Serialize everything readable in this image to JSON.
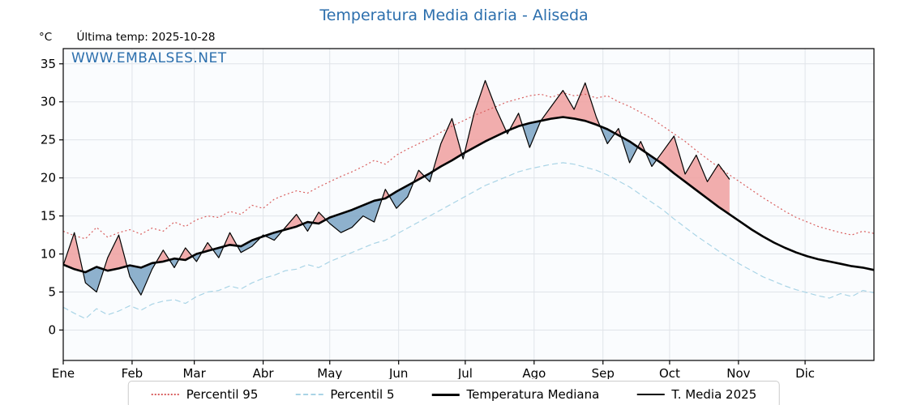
{
  "header": {
    "title": "Temperatura Media diaria - Aliseda",
    "unit_label": "°C",
    "last_temp_label": "Última temp: 2025-10-28",
    "watermark": "WWW.EMBALSES.NET"
  },
  "colors": {
    "title_blue": "#2c6fad",
    "percentil95_red": "#d95f5f",
    "percentil5_blue": "#a9d4e6",
    "median_black": "#000000",
    "fill_above": "#ef9f9f",
    "fill_below": "#7aa3c4",
    "grid": "#e0e4e9",
    "plot_bg": "#fafcfe"
  },
  "chart_data": {
    "type": "line",
    "title": "Temperatura Media diaria - Aliseda",
    "xlabel": "",
    "ylabel": "°C",
    "ylim": [
      -4,
      37
    ],
    "yticks": [
      0,
      5,
      10,
      15,
      20,
      25,
      30,
      35
    ],
    "x_unit": "day_of_year",
    "x_max": 365,
    "grid": true,
    "months": [
      {
        "label": "Ene",
        "day": 0
      },
      {
        "label": "Feb",
        "day": 31
      },
      {
        "label": "Mar",
        "day": 59
      },
      {
        "label": "Abr",
        "day": 90
      },
      {
        "label": "May",
        "day": 120
      },
      {
        "label": "Jun",
        "day": 151
      },
      {
        "label": "Jul",
        "day": 181
      },
      {
        "label": "Ago",
        "day": 212
      },
      {
        "label": "Sep",
        "day": 243
      },
      {
        "label": "Oct",
        "day": 273
      },
      {
        "label": "Nov",
        "day": 304
      },
      {
        "label": "Dic",
        "day": 334
      }
    ],
    "series": [
      {
        "name": "Percentil 95",
        "style": "dotted",
        "color": "#d95f5f",
        "width": 1.2,
        "day_start": 0,
        "day_step": 5,
        "values": [
          13.0,
          12.4,
          12.0,
          13.5,
          12.2,
          12.8,
          13.2,
          12.6,
          13.4,
          13.0,
          14.2,
          13.6,
          14.5,
          15.0,
          14.8,
          15.6,
          15.2,
          16.4,
          16.0,
          17.2,
          17.8,
          18.3,
          18.0,
          18.8,
          19.5,
          20.2,
          20.8,
          21.5,
          22.3,
          21.8,
          23.0,
          23.8,
          24.5,
          25.2,
          26.0,
          26.8,
          27.5,
          28.2,
          28.8,
          29.4,
          30.0,
          30.4,
          30.8,
          31.0,
          30.6,
          31.2,
          30.8,
          31.0,
          30.5,
          30.8,
          30.0,
          29.4,
          28.6,
          27.8,
          26.8,
          25.8,
          24.8,
          23.6,
          22.5,
          21.4,
          20.4,
          19.4,
          18.4,
          17.4,
          16.5,
          15.6,
          14.8,
          14.2,
          13.6,
          13.2,
          12.8,
          12.5,
          13.0,
          12.7
        ]
      },
      {
        "name": "Percentil 5",
        "style": "dashed",
        "color": "#a9d4e6",
        "width": 1.2,
        "day_start": 0,
        "day_step": 5,
        "values": [
          3.0,
          2.2,
          1.5,
          2.8,
          2.0,
          2.5,
          3.2,
          2.6,
          3.4,
          3.8,
          4.0,
          3.5,
          4.4,
          5.0,
          5.2,
          5.8,
          5.4,
          6.2,
          6.8,
          7.2,
          7.8,
          8.0,
          8.6,
          8.2,
          9.0,
          9.6,
          10.2,
          10.8,
          11.4,
          11.8,
          12.6,
          13.4,
          14.2,
          15.0,
          15.8,
          16.6,
          17.4,
          18.2,
          19.0,
          19.6,
          20.2,
          20.8,
          21.2,
          21.5,
          21.8,
          22.0,
          21.8,
          21.4,
          21.0,
          20.4,
          19.6,
          18.8,
          17.8,
          16.8,
          15.8,
          14.6,
          13.5,
          12.4,
          11.4,
          10.4,
          9.5,
          8.6,
          7.8,
          7.0,
          6.4,
          5.8,
          5.3,
          4.9,
          4.5,
          4.2,
          4.8,
          4.4,
          5.2,
          4.9
        ]
      },
      {
        "name": "Temperatura Mediana",
        "style": "solid",
        "color": "#000000",
        "width": 2.6,
        "day_start": 0,
        "day_step": 5,
        "values": [
          8.6,
          8.0,
          7.6,
          8.3,
          7.8,
          8.1,
          8.5,
          8.2,
          8.8,
          9.0,
          9.4,
          9.2,
          10.0,
          10.4,
          10.8,
          11.2,
          11.0,
          11.8,
          12.3,
          12.8,
          13.2,
          13.6,
          14.2,
          14.0,
          14.8,
          15.3,
          15.8,
          16.4,
          17.0,
          17.3,
          18.2,
          19.0,
          19.8,
          20.6,
          21.5,
          22.3,
          23.2,
          24.0,
          24.8,
          25.5,
          26.2,
          26.8,
          27.2,
          27.5,
          27.8,
          28.0,
          27.8,
          27.5,
          27.0,
          26.4,
          25.6,
          24.8,
          23.8,
          22.8,
          21.8,
          20.6,
          19.5,
          18.4,
          17.3,
          16.2,
          15.2,
          14.2,
          13.2,
          12.3,
          11.5,
          10.8,
          10.2,
          9.7,
          9.3,
          9.0,
          8.7,
          8.4,
          8.2,
          7.9
        ]
      },
      {
        "name": "T. Media 2025",
        "style": "solid",
        "color": "#000000",
        "width": 1.2,
        "day_start": 0,
        "day_step": 5,
        "values": [
          8.5,
          12.8,
          6.2,
          5.0,
          9.5,
          12.5,
          7.0,
          4.6,
          8.0,
          10.5,
          8.2,
          10.8,
          9.0,
          11.5,
          9.5,
          12.8,
          10.2,
          11.0,
          12.5,
          11.8,
          13.5,
          15.2,
          13.0,
          15.5,
          14.0,
          12.8,
          13.5,
          15.0,
          14.2,
          18.5,
          16.0,
          17.5,
          21.0,
          19.5,
          24.5,
          27.8,
          22.5,
          28.5,
          32.8,
          29.0,
          25.8,
          28.5,
          24.0,
          27.5,
          29.5,
          31.5,
          29.0,
          32.5,
          28.0,
          24.5,
          26.5,
          22.0,
          24.8,
          21.5,
          23.5,
          25.5,
          20.5,
          23.0,
          19.5,
          21.8,
          19.8
        ]
      }
    ],
    "fill_between": {
      "upper": 3,
      "lower": 2,
      "above_color": "#ef9f9f",
      "below_color": "#7aa3c4",
      "opacity": 0.85
    },
    "legend": {
      "position": "bottom"
    }
  }
}
